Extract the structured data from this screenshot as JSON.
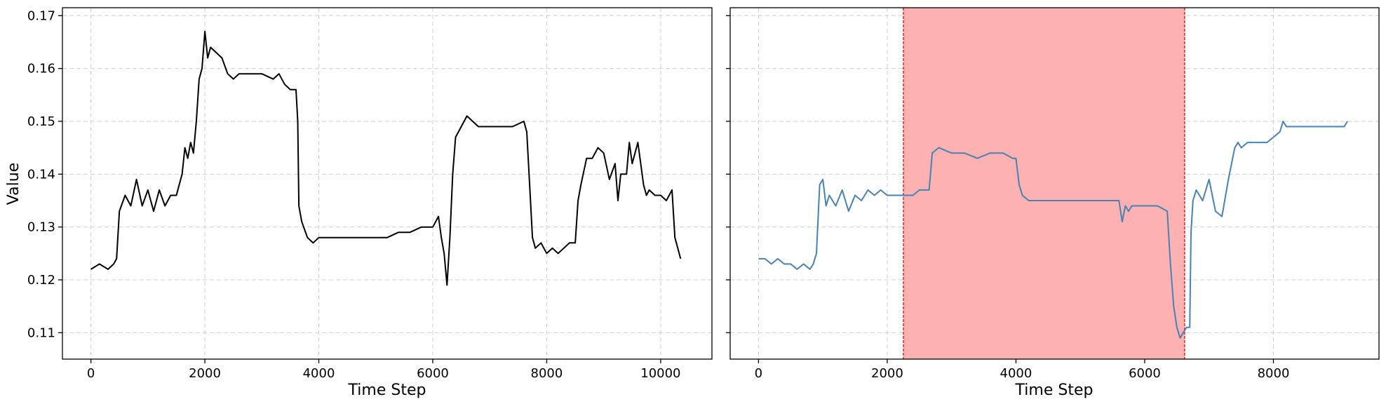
{
  "chart_data": [
    {
      "type": "line",
      "xlabel": "Time Step",
      "ylabel": "Value",
      "xlim": [
        -500,
        10900
      ],
      "ylim": [
        0.105,
        0.1715
      ],
      "xticks": [
        0,
        2000,
        4000,
        6000,
        8000,
        10000
      ],
      "yticks": [
        0.11,
        0.12,
        0.13,
        0.14,
        0.15,
        0.16,
        0.17
      ],
      "ytick_labels": [
        "0.11",
        "0.12",
        "0.13",
        "0.14",
        "0.15",
        "0.16",
        "0.17"
      ],
      "grid": true,
      "series": [
        {
          "color": "#000000",
          "x": [
            0,
            150,
            300,
            400,
            450,
            500,
            600,
            700,
            800,
            900,
            1000,
            1100,
            1200,
            1300,
            1400,
            1500,
            1550,
            1600,
            1650,
            1700,
            1750,
            1800,
            1850,
            1900,
            1950,
            2000,
            2050,
            2100,
            2200,
            2300,
            2400,
            2500,
            2600,
            2800,
            3000,
            3200,
            3300,
            3400,
            3500,
            3600,
            3630,
            3650,
            3700,
            3800,
            3900,
            4000,
            4200,
            4500,
            4800,
            5000,
            5200,
            5400,
            5600,
            5800,
            5950,
            6000,
            6100,
            6150,
            6200,
            6250,
            6300,
            6350,
            6400,
            6500,
            6600,
            6800,
            7000,
            7200,
            7400,
            7600,
            7650,
            7700,
            7750,
            7800,
            7900,
            8000,
            8100,
            8200,
            8300,
            8400,
            8500,
            8550,
            8600,
            8700,
            8800,
            8900,
            9000,
            9100,
            9200,
            9250,
            9300,
            9400,
            9450,
            9500,
            9600,
            9700,
            9750,
            9800,
            9900,
            10000,
            10100,
            10200,
            10250,
            10300,
            10350
          ],
          "y": [
            0.122,
            0.123,
            0.122,
            0.123,
            0.124,
            0.133,
            0.136,
            0.134,
            0.139,
            0.134,
            0.137,
            0.133,
            0.137,
            0.134,
            0.136,
            0.136,
            0.138,
            0.14,
            0.145,
            0.143,
            0.146,
            0.144,
            0.15,
            0.158,
            0.16,
            0.167,
            0.162,
            0.164,
            0.163,
            0.162,
            0.159,
            0.158,
            0.159,
            0.159,
            0.159,
            0.158,
            0.159,
            0.157,
            0.156,
            0.156,
            0.15,
            0.134,
            0.131,
            0.128,
            0.127,
            0.128,
            0.128,
            0.128,
            0.128,
            0.128,
            0.128,
            0.129,
            0.129,
            0.13,
            0.13,
            0.13,
            0.132,
            0.128,
            0.125,
            0.119,
            0.128,
            0.14,
            0.147,
            0.149,
            0.151,
            0.149,
            0.149,
            0.149,
            0.149,
            0.15,
            0.148,
            0.138,
            0.128,
            0.126,
            0.127,
            0.125,
            0.126,
            0.125,
            0.126,
            0.127,
            0.127,
            0.135,
            0.138,
            0.143,
            0.143,
            0.145,
            0.144,
            0.139,
            0.142,
            0.135,
            0.14,
            0.14,
            0.146,
            0.142,
            0.146,
            0.138,
            0.136,
            0.137,
            0.136,
            0.136,
            0.135,
            0.137,
            0.128,
            0.126,
            0.124
          ]
        }
      ]
    },
    {
      "type": "line",
      "xlabel": "Time Step",
      "ylabel": "",
      "xlim": [
        -440,
        9640
      ],
      "ylim": [
        0.105,
        0.1715
      ],
      "xticks": [
        0,
        2000,
        4000,
        6000,
        8000
      ],
      "grid": true,
      "highlight": {
        "x_start": 2250,
        "x_end": 6620,
        "fill": "#fdb1b1",
        "edge": "#ee2222"
      },
      "series": [
        {
          "color": "#4682b4",
          "x": [
            0,
            100,
            200,
            300,
            400,
            500,
            600,
            700,
            800,
            850,
            900,
            950,
            1000,
            1050,
            1100,
            1200,
            1300,
            1400,
            1500,
            1600,
            1700,
            1800,
            1900,
            2000,
            2100,
            2200,
            2300,
            2400,
            2500,
            2600,
            2650,
            2700,
            2800,
            3000,
            3200,
            3400,
            3600,
            3800,
            3950,
            4000,
            4050,
            4100,
            4200,
            4400,
            4600,
            4800,
            5000,
            5200,
            5400,
            5600,
            5650,
            5700,
            5750,
            5800,
            6000,
            6200,
            6350,
            6400,
            6450,
            6500,
            6550,
            6600,
            6650,
            6700,
            6720,
            6750,
            6800,
            6900,
            7000,
            7100,
            7200,
            7300,
            7400,
            7450,
            7500,
            7600,
            7700,
            7800,
            7900,
            8000,
            8100,
            8150,
            8200,
            8400,
            8600,
            8800,
            9000,
            9100,
            9150
          ],
          "y": [
            0.124,
            0.124,
            0.123,
            0.124,
            0.123,
            0.123,
            0.122,
            0.123,
            0.122,
            0.123,
            0.125,
            0.138,
            0.139,
            0.134,
            0.136,
            0.134,
            0.137,
            0.133,
            0.136,
            0.135,
            0.137,
            0.136,
            0.137,
            0.136,
            0.136,
            0.136,
            0.136,
            0.136,
            0.137,
            0.137,
            0.137,
            0.144,
            0.145,
            0.144,
            0.144,
            0.143,
            0.144,
            0.144,
            0.143,
            0.143,
            0.138,
            0.136,
            0.135,
            0.135,
            0.135,
            0.135,
            0.135,
            0.135,
            0.135,
            0.135,
            0.131,
            0.134,
            0.133,
            0.134,
            0.134,
            0.134,
            0.133,
            0.123,
            0.115,
            0.111,
            0.109,
            0.11,
            0.111,
            0.111,
            0.129,
            0.135,
            0.137,
            0.135,
            0.139,
            0.133,
            0.132,
            0.139,
            0.145,
            0.146,
            0.145,
            0.146,
            0.146,
            0.146,
            0.146,
            0.147,
            0.148,
            0.15,
            0.149,
            0.149,
            0.149,
            0.149,
            0.149,
            0.149,
            0.15
          ]
        }
      ]
    }
  ]
}
